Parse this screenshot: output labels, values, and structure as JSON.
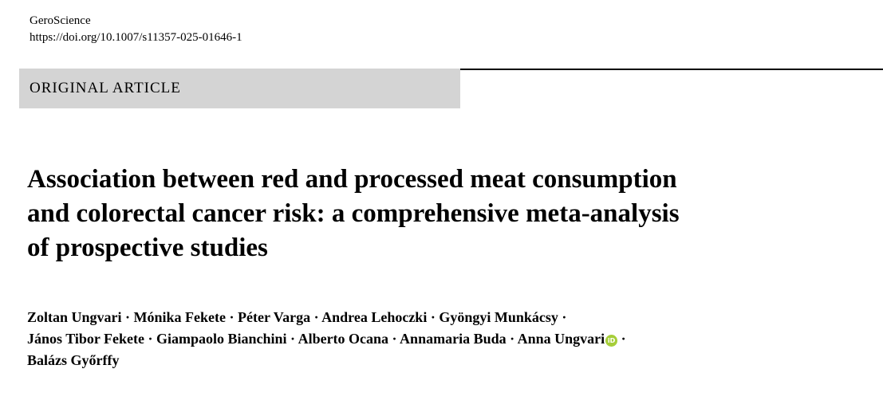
{
  "header": {
    "journal": "GeroScience",
    "doi": "https://doi.org/10.1007/s11357-025-01646-1"
  },
  "section": "ORIGINAL ARTICLE",
  "title_lines": [
    "Association between red and processed meat consumption",
    "and colorectal cancer risk: a comprehensive meta-analysis",
    "of prospective studies"
  ],
  "author_lines": [
    "Zoltan Ungvari · Mónika Fekete · Péter Varga · Andrea Lehoczki · Gyöngyi Munkácsy ·",
    "János Tibor Fekete · Giampaolo Bianchini · Alberto Ocana · Annamaria Buda · Anna Ungvari",
    " ·",
    "Balázs Győrffy"
  ],
  "orcid_icon": "orcid-icon",
  "orcid_text": "iD",
  "colors": {
    "section_bg": "#d4d4d4",
    "orcid": "#a6ce39"
  }
}
